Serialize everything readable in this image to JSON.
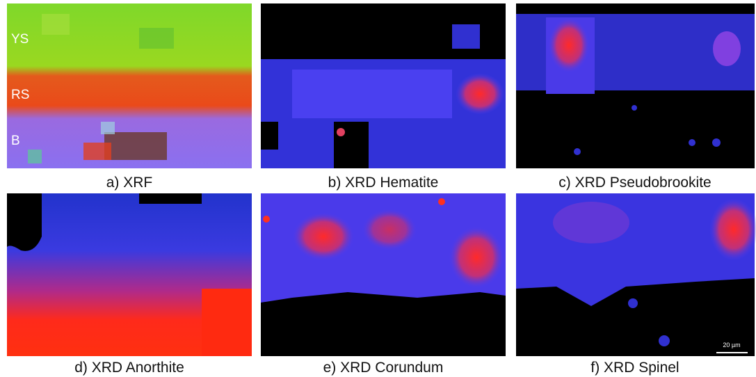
{
  "panels": [
    {
      "caption": "a) XRF",
      "labels": [
        "YS",
        "RS",
        "B"
      ]
    },
    {
      "caption": "b) XRD Hematite"
    },
    {
      "caption": "c) XRD Pseudobrookite"
    },
    {
      "caption": "d) XRD Anorthite"
    },
    {
      "caption": "e) XRD Corundum"
    },
    {
      "caption": "f) XRD Spinel",
      "scale_bar": "20 µm"
    }
  ]
}
